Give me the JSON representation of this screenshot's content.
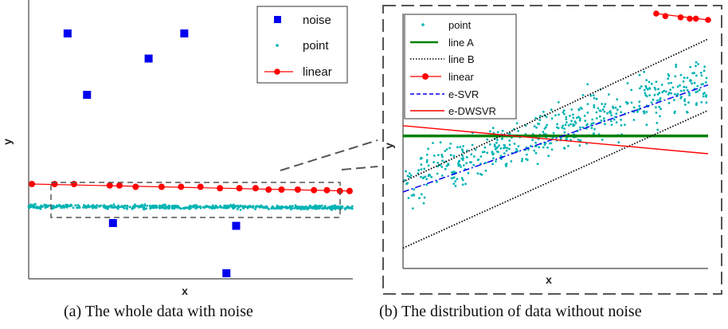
{
  "chart_data": [
    {
      "id": "a",
      "type": "scatter",
      "xlabel": "x",
      "ylabel": "y",
      "caption": "(a) The whole data with noise",
      "legend": [
        "noise",
        "point",
        "linear"
      ],
      "colors": {
        "noise": "#0000ee",
        "point": "#00b3b3",
        "linear": "#ff0000"
      },
      "series": [
        {
          "name": "noise",
          "marker": "square",
          "x": [
            0.12,
            0.37,
            0.48,
            0.64,
            0.61,
            0.18,
            0.26
          ],
          "y": [
            0.88,
            0.79,
            0.88,
            0.19,
            0.02,
            0.66,
            0.2
          ]
        },
        {
          "name": "point",
          "marker": "dot",
          "x_range": [
            0,
            1
          ],
          "y_center": [
            0.26,
            0.255
          ],
          "spread": 0.008
        },
        {
          "name": "linear",
          "marker": "circle",
          "line": true,
          "x": [
            0.01,
            0.08,
            0.14,
            0.25,
            0.28,
            0.33,
            0.41,
            0.47,
            0.53,
            0.59,
            0.65,
            0.7,
            0.74,
            0.78,
            0.83,
            0.88,
            0.92,
            0.96,
            0.99
          ],
          "y": [
            0.34,
            0.34,
            0.34,
            0.335,
            0.335,
            0.33,
            0.33,
            0.33,
            0.33,
            0.325,
            0.325,
            0.325,
            0.32,
            0.32,
            0.32,
            0.318,
            0.318,
            0.315,
            0.315
          ]
        }
      ]
    },
    {
      "id": "b",
      "type": "scatter",
      "xlabel": "x",
      "ylabel": "y",
      "caption": "(b) The distribution of data without noise",
      "legend": [
        "point",
        "line A",
        "line B",
        "linear",
        "e-SVR",
        "e-DWSVR"
      ],
      "colors": {
        "point": "#00b3b3",
        "line A": "#008000",
        "line B": "#000000",
        "linear": "#ff0000",
        "e-SVR": "#0000ee",
        "e-DWSVR": "#ff0000"
      },
      "series": [
        {
          "name": "point",
          "marker": "dot",
          "count": 520,
          "center": {
            "x0": 0,
            "y0": 0.34,
            "x1": 1,
            "y1": 0.74
          },
          "spread": 0.22
        },
        {
          "name": "line A",
          "style": "solid",
          "x": [
            0,
            1
          ],
          "y": [
            0.52,
            0.52
          ]
        },
        {
          "name": "line B",
          "style": "dotted",
          "x": [
            0,
            1
          ],
          "y": [
            0.34,
            0.9
          ]
        },
        {
          "name": "line B",
          "style": "dotted",
          "x": [
            0,
            1
          ],
          "y": [
            0.08,
            0.62
          ]
        },
        {
          "name": "linear",
          "marker": "circle",
          "line": true,
          "x": [
            0.83,
            0.86,
            0.91,
            0.94,
            0.96,
            1.0
          ],
          "y": [
            1.0,
            0.99,
            0.985,
            0.98,
            0.98,
            0.975
          ]
        },
        {
          "name": "e-SVR",
          "style": "dashdot",
          "x": [
            0,
            1
          ],
          "y": [
            0.3,
            0.72
          ]
        },
        {
          "name": "e-DWSVR",
          "style": "solid",
          "x": [
            0,
            1
          ],
          "y": [
            0.56,
            0.45
          ]
        }
      ]
    }
  ]
}
